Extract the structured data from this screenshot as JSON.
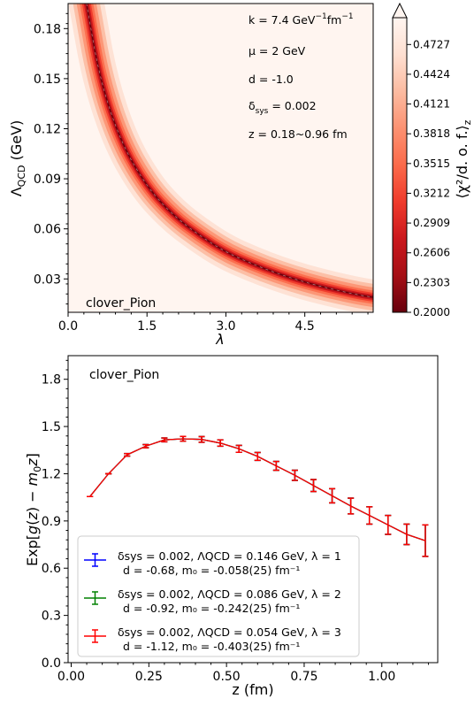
{
  "chart_data": [
    {
      "type": "heatmap",
      "dataset_label": "clover_Pion",
      "xlabel": "λ",
      "ylabel_main": "Λ",
      "ylabel_sub": "QCD",
      "ylabel_unit": "(GeV)",
      "xlim": [
        0.0,
        5.8
      ],
      "ylim": [
        0.01,
        0.195
      ],
      "xticks": [
        {
          "v": 0.0,
          "label": "0.0"
        },
        {
          "v": 1.5,
          "label": "1.5"
        },
        {
          "v": 3.0,
          "label": "3.0"
        },
        {
          "v": 4.5,
          "label": "4.5"
        }
      ],
      "yticks": [
        {
          "v": 0.03,
          "label": "0.03"
        },
        {
          "v": 0.06,
          "label": "0.06"
        },
        {
          "v": 0.09,
          "label": "0.09"
        },
        {
          "v": 0.12,
          "label": "0.12"
        },
        {
          "v": 0.15,
          "label": "0.15"
        },
        {
          "v": 0.18,
          "label": "0.18"
        }
      ],
      "annotations": [
        {
          "pre": "k = 7.4 GeV",
          "sup1": "−1",
          "mid": "fm",
          "sup2": "−1"
        },
        {
          "pre": "μ = 2 GeV"
        },
        {
          "pre": "d = -1.0"
        },
        {
          "pre": "δ",
          "sub": "sys",
          "post": " = 0.002"
        },
        {
          "pre": "z = 0.18~0.96 fm"
        }
      ],
      "minimum_valley": {
        "lambda": [
          0.35,
          0.6,
          1.0,
          1.5,
          2.0,
          2.5,
          3.0,
          3.5,
          4.0,
          4.5,
          5.0,
          5.5,
          5.8
        ],
        "lambda_qcd": [
          0.195,
          0.15,
          0.112,
          0.085,
          0.068,
          0.056,
          0.046,
          0.039,
          0.033,
          0.028,
          0.024,
          0.0205,
          0.019
        ]
      },
      "colorbar": {
        "label": "⟨χ²/d. o. f.⟩",
        "label_sub": "z",
        "min": 0.2,
        "max": 0.5,
        "ticks": [
          "0.2000",
          "0.2303",
          "0.2606",
          "0.2909",
          "0.3212",
          "0.3515",
          "0.3818",
          "0.4121",
          "0.4424",
          "0.4727"
        ],
        "extend": "max",
        "colors": [
          "#67000d",
          "#a50f15",
          "#cb181d",
          "#ef3b2c",
          "#fb6a4a",
          "#fc9272",
          "#fcbba1",
          "#fee0d2",
          "#fff5f0"
        ]
      }
    },
    {
      "type": "line",
      "dataset_label": "clover_Pion",
      "xlabel": "z (fm)",
      "ylabel": "Exp[g(z) − m₀z]",
      "xlim": [
        -0.01,
        1.18
      ],
      "ylim": [
        0.0,
        1.95
      ],
      "xticks": [
        {
          "v": 0.0,
          "label": "0.00"
        },
        {
          "v": 0.25,
          "label": "0.25"
        },
        {
          "v": 0.5,
          "label": "0.50"
        },
        {
          "v": 0.75,
          "label": "0.75"
        },
        {
          "v": 1.0,
          "label": "1.00"
        }
      ],
      "yticks": [
        {
          "v": 0.0,
          "label": "0.0"
        },
        {
          "v": 0.3,
          "label": "0.3"
        },
        {
          "v": 0.6,
          "label": "0.6"
        },
        {
          "v": 0.9,
          "label": "0.9"
        },
        {
          "v": 1.2,
          "label": "1.2"
        },
        {
          "v": 1.5,
          "label": "1.5"
        },
        {
          "v": 1.8,
          "label": "1.8"
        }
      ],
      "x": [
        0.06,
        0.12,
        0.18,
        0.24,
        0.3,
        0.36,
        0.42,
        0.48,
        0.54,
        0.6,
        0.66,
        0.72,
        0.78,
        0.84,
        0.9,
        0.96,
        1.02,
        1.08,
        1.14
      ],
      "series": [
        {
          "legend_line1": "δsys = 0.002, ΛQCD = 0.146 GeV, λ = 1",
          "legend_line2": "d = -0.68, m₀ = -0.058(25) fm⁻¹",
          "color": "#0000ff",
          "values": [
            1.055,
            1.2,
            1.32,
            1.375,
            1.415,
            1.422,
            1.418,
            1.395,
            1.358,
            1.31,
            1.25,
            1.19,
            1.125,
            1.06,
            0.995,
            0.935,
            0.875,
            0.815,
            0.775
          ],
          "errors": [
            0.0,
            0.0,
            0.008,
            0.01,
            0.012,
            0.015,
            0.018,
            0.02,
            0.022,
            0.025,
            0.028,
            0.032,
            0.038,
            0.045,
            0.05,
            0.055,
            0.06,
            0.065,
            0.1
          ]
        },
        {
          "legend_line1": "δsys = 0.002, ΛQCD = 0.086 GeV, λ = 2",
          "legend_line2": "d = -0.92, m₀ = -0.242(25) fm⁻¹",
          "color": "#008000",
          "values": [
            1.055,
            1.2,
            1.32,
            1.375,
            1.415,
            1.422,
            1.418,
            1.395,
            1.358,
            1.31,
            1.25,
            1.19,
            1.125,
            1.06,
            0.995,
            0.935,
            0.875,
            0.815,
            0.775
          ],
          "errors": [
            0.0,
            0.0,
            0.008,
            0.01,
            0.012,
            0.015,
            0.018,
            0.02,
            0.022,
            0.025,
            0.028,
            0.032,
            0.038,
            0.045,
            0.05,
            0.055,
            0.06,
            0.065,
            0.1
          ]
        },
        {
          "legend_line1": "δsys = 0.002, ΛQCD = 0.054 GeV, λ = 3",
          "legend_line2": "d = -1.12, m₀ = -0.403(25) fm⁻¹",
          "color": "#ff0000",
          "values": [
            1.055,
            1.2,
            1.32,
            1.375,
            1.415,
            1.422,
            1.418,
            1.395,
            1.358,
            1.31,
            1.25,
            1.19,
            1.125,
            1.06,
            0.995,
            0.935,
            0.875,
            0.815,
            0.775
          ],
          "errors": [
            0.0,
            0.0,
            0.008,
            0.01,
            0.012,
            0.015,
            0.018,
            0.02,
            0.022,
            0.025,
            0.028,
            0.032,
            0.038,
            0.045,
            0.05,
            0.055,
            0.06,
            0.065,
            0.1
          ]
        }
      ],
      "legend_location": "lower-left"
    }
  ]
}
